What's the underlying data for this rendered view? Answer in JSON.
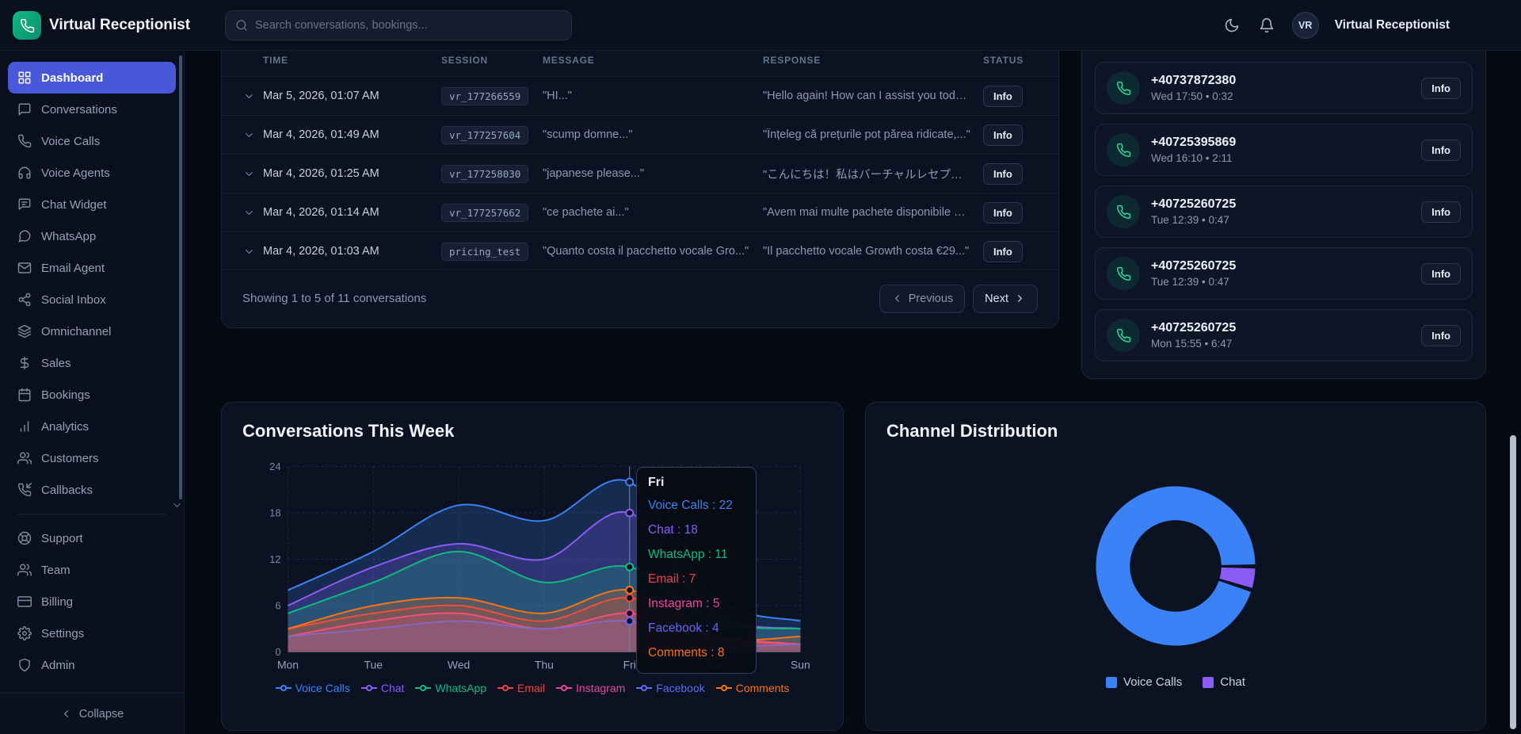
{
  "colors": {
    "accent": "#4858d9",
    "brand_green": "#10b981",
    "call_icon_green": "#34d399",
    "page_scrollbar": "#b7bfce"
  },
  "app": {
    "title": "Virtual Receptionist"
  },
  "topbar": {
    "search_placeholder": "Search conversations, bookings...",
    "user_initials": "VR",
    "user_name": "Virtual Receptionist"
  },
  "sidebar": {
    "items": [
      {
        "label": "Dashboard",
        "icon": "grid-icon",
        "active": true
      },
      {
        "label": "Conversations",
        "icon": "message-icon"
      },
      {
        "label": "Voice Calls",
        "icon": "phone-icon"
      },
      {
        "label": "Voice Agents",
        "icon": "headphones-icon"
      },
      {
        "label": "Chat Widget",
        "icon": "chat-square-icon"
      },
      {
        "label": "WhatsApp",
        "icon": "message-circle-icon"
      },
      {
        "label": "Email Agent",
        "icon": "mail-icon"
      },
      {
        "label": "Social Inbox",
        "icon": "share-icon"
      },
      {
        "label": "Omnichannel",
        "icon": "layers-icon"
      },
      {
        "label": "Sales",
        "icon": "dollar-icon"
      },
      {
        "label": "Bookings",
        "icon": "calendar-icon"
      },
      {
        "label": "Analytics",
        "icon": "bar-chart-icon"
      },
      {
        "label": "Customers",
        "icon": "users-icon"
      },
      {
        "label": "Callbacks",
        "icon": "phone-incoming-icon"
      }
    ],
    "secondary_items": [
      {
        "label": "Support",
        "icon": "lifebuoy-icon"
      },
      {
        "label": "Team",
        "icon": "users-icon"
      },
      {
        "label": "Billing",
        "icon": "credit-card-icon"
      },
      {
        "label": "Settings",
        "icon": "gear-icon"
      },
      {
        "label": "Admin",
        "icon": "shield-icon"
      }
    ],
    "collapse_label": "Collapse"
  },
  "table": {
    "columns": [
      "TIME",
      "SESSION",
      "MESSAGE",
      "RESPONSE",
      "STATUS"
    ],
    "rows": [
      {
        "time": "Mar 5, 2026, 01:07 AM",
        "session": "vr_177266559",
        "message": "\"HI...\"",
        "response": "\"Hello again! How can I assist you toda...\"",
        "status": "Info"
      },
      {
        "time": "Mar 4, 2026, 01:49 AM",
        "session": "vr_177257604",
        "message": "\"scump domne...\"",
        "response": "\"Înțeleg că prețurile pot părea ridicate,...\"",
        "status": "Info"
      },
      {
        "time": "Mar 4, 2026, 01:25 AM",
        "session": "vr_177258030",
        "message": "\"japanese please...\"",
        "response": "\"こんにちは！私はバーチャルレセプショ...\"",
        "status": "Info"
      },
      {
        "time": "Mar 4, 2026, 01:14 AM",
        "session": "vr_177257662",
        "message": "\"ce pachete ai...\"",
        "response": "\"Avem mai multe pachete disponibile p...\"",
        "status": "Info"
      },
      {
        "time": "Mar 4, 2026, 01:03 AM",
        "session": "pricing_test",
        "message": "\"Quanto costa il pacchetto vocale Gro...\"",
        "response": "\"Il pacchetto vocale Growth costa €29...\"",
        "status": "Info"
      }
    ],
    "footer_text": "Showing 1 to 5 of 11 conversations",
    "prev_label": "Previous",
    "next_label": "Next"
  },
  "calls": {
    "items": [
      {
        "number": "+40737872380",
        "meta": "Wed 17:50 • 0:32",
        "action": "Info"
      },
      {
        "number": "+40725395869",
        "meta": "Wed 16:10 • 2:11",
        "action": "Info"
      },
      {
        "number": "+40725260725",
        "meta": "Tue 12:39 • 0:47",
        "action": "Info"
      },
      {
        "number": "+40725260725",
        "meta": "Tue 12:39 • 0:47",
        "action": "Info"
      },
      {
        "number": "+40725260725",
        "meta": "Mon 15:55 • 6:47",
        "action": "Info"
      }
    ]
  },
  "chart_data": [
    {
      "type": "area",
      "title": "Conversations This Week",
      "x": [
        "Mon",
        "Tue",
        "Wed",
        "Thu",
        "Fri",
        "Sat",
        "Sun"
      ],
      "xlabel": "",
      "ylabel": "",
      "ylim": [
        0,
        24
      ],
      "yticks": [
        0,
        6,
        12,
        18,
        24
      ],
      "grid": true,
      "legend_position": "bottom",
      "series": [
        {
          "name": "Voice Calls",
          "color": "#3b82f6",
          "values": [
            8,
            13,
            19,
            17,
            22,
            7,
            4
          ]
        },
        {
          "name": "Chat",
          "color": "#8b5cf6",
          "values": [
            6,
            11,
            14,
            12,
            18,
            5,
            3
          ]
        },
        {
          "name": "WhatsApp",
          "color": "#10b981",
          "values": [
            5,
            9,
            13,
            9,
            11,
            4,
            3
          ]
        },
        {
          "name": "Email",
          "color": "#ef4444",
          "values": [
            3,
            5,
            6,
            4,
            7,
            2,
            1
          ]
        },
        {
          "name": "Instagram",
          "color": "#ec4899",
          "values": [
            2,
            4,
            5,
            3,
            5,
            2,
            1
          ]
        },
        {
          "name": "Facebook",
          "color": "#6366f1",
          "values": [
            2,
            3,
            4,
            3,
            4,
            1,
            1
          ]
        },
        {
          "name": "Comments",
          "color": "#f97316",
          "values": [
            3,
            6,
            7,
            5,
            8,
            2,
            2
          ]
        }
      ],
      "tooltip": {
        "label": "Fri",
        "highlight_index": 4,
        "entries": [
          {
            "name": "Voice Calls",
            "value": 22
          },
          {
            "name": "Chat",
            "value": 18
          },
          {
            "name": "WhatsApp",
            "value": 11
          },
          {
            "name": "Email",
            "value": 7
          },
          {
            "name": "Instagram",
            "value": 5
          },
          {
            "name": "Facebook",
            "value": 4
          },
          {
            "name": "Comments",
            "value": 8
          }
        ]
      }
    },
    {
      "type": "pie",
      "title": "Channel Distribution",
      "donut": true,
      "labels": [
        "Voice Calls",
        "Chat"
      ],
      "values": [
        96,
        4
      ],
      "colors": [
        "#3b82f6",
        "#8b5cf6"
      ],
      "legend_position": "bottom"
    }
  ]
}
